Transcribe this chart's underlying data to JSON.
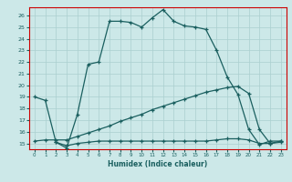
{
  "title": "",
  "xlabel": "Humidex (Indice chaleur)",
  "ylabel": "",
  "bg_color": "#cce8e8",
  "grid_color": "#aacfcf",
  "line_color": "#1a5f5f",
  "spine_color": "#cc0000",
  "xlim": [
    -0.5,
    23.5
  ],
  "ylim": [
    14.5,
    26.7
  ],
  "yticks": [
    15,
    16,
    17,
    18,
    19,
    20,
    21,
    22,
    23,
    24,
    25,
    26
  ],
  "xticks": [
    0,
    1,
    2,
    3,
    4,
    5,
    6,
    7,
    8,
    9,
    10,
    11,
    12,
    13,
    14,
    15,
    16,
    17,
    18,
    19,
    20,
    21,
    22,
    23
  ],
  "curve1_x": [
    0,
    1,
    2,
    3,
    4,
    5,
    6,
    7,
    8,
    9,
    10,
    11,
    12,
    13,
    14,
    15,
    16,
    17,
    18,
    19,
    20,
    21,
    22,
    23
  ],
  "curve1_y": [
    19.0,
    18.7,
    15.1,
    14.6,
    17.5,
    21.8,
    22.0,
    25.5,
    25.5,
    25.4,
    25.0,
    25.8,
    26.5,
    25.5,
    25.1,
    25.0,
    24.8,
    23.0,
    20.7,
    19.2,
    16.2,
    14.9,
    15.2,
    15.2
  ],
  "curve2_x": [
    0,
    1,
    2,
    3,
    4,
    5,
    6,
    7,
    8,
    9,
    10,
    11,
    12,
    13,
    14,
    15,
    16,
    17,
    18,
    19,
    20,
    21,
    22,
    23
  ],
  "curve2_y": [
    15.2,
    15.3,
    15.3,
    15.3,
    15.6,
    15.9,
    16.2,
    16.5,
    16.9,
    17.2,
    17.5,
    17.9,
    18.2,
    18.5,
    18.8,
    19.1,
    19.4,
    19.6,
    19.8,
    19.9,
    19.3,
    16.2,
    15.0,
    15.2
  ],
  "curve3_x": [
    2,
    3,
    4,
    5,
    6,
    7,
    8,
    9,
    10,
    11,
    12,
    13,
    14,
    15,
    16,
    17,
    18,
    19,
    20,
    21,
    22,
    23
  ],
  "curve3_y": [
    15.1,
    14.8,
    15.0,
    15.1,
    15.2,
    15.2,
    15.2,
    15.2,
    15.2,
    15.2,
    15.2,
    15.2,
    15.2,
    15.2,
    15.2,
    15.3,
    15.4,
    15.4,
    15.3,
    15.0,
    15.0,
    15.1
  ]
}
